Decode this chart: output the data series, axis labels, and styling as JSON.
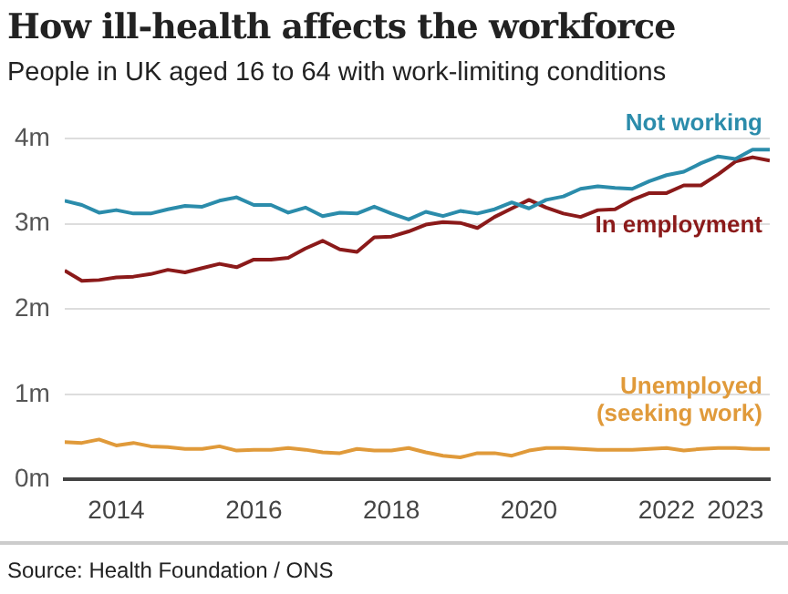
{
  "chart_data": {
    "type": "line",
    "title": "How ill-health affects the workforce",
    "subtitle": "People in UK aged 16 to 64 with work-limiting conditions",
    "x": [
      2013.25,
      2013.5,
      2013.75,
      2014,
      2014.25,
      2014.5,
      2014.75,
      2015,
      2015.25,
      2015.5,
      2015.75,
      2016,
      2016.25,
      2016.5,
      2016.75,
      2017,
      2017.25,
      2017.5,
      2017.75,
      2018,
      2018.25,
      2018.5,
      2018.75,
      2019,
      2019.25,
      2019.5,
      2019.75,
      2020,
      2020.25,
      2020.5,
      2020.75,
      2021,
      2021.25,
      2021.5,
      2021.75,
      2022,
      2022.25,
      2022.5,
      2022.75,
      2023,
      2023.25,
      2023.5
    ],
    "series": [
      {
        "name": "Not working",
        "color": "#2b8cab",
        "values": [
          3.27,
          3.22,
          3.13,
          3.16,
          3.12,
          3.12,
          3.17,
          3.21,
          3.2,
          3.27,
          3.31,
          3.22,
          3.22,
          3.13,
          3.19,
          3.09,
          3.13,
          3.12,
          3.2,
          3.12,
          3.05,
          3.14,
          3.09,
          3.15,
          3.12,
          3.17,
          3.25,
          3.18,
          3.28,
          3.32,
          3.41,
          3.44,
          3.42,
          3.41,
          3.5,
          3.57,
          3.61,
          3.71,
          3.79,
          3.76,
          3.87,
          3.87
        ]
      },
      {
        "name": "In employment",
        "color": "#8b1a1a",
        "values": [
          2.45,
          2.33,
          2.34,
          2.37,
          2.38,
          2.41,
          2.46,
          2.43,
          2.48,
          2.53,
          2.49,
          2.58,
          2.58,
          2.6,
          2.71,
          2.8,
          2.7,
          2.67,
          2.84,
          2.85,
          2.91,
          2.99,
          3.02,
          3.01,
          2.95,
          3.08,
          3.18,
          3.28,
          3.19,
          3.12,
          3.08,
          3.16,
          3.17,
          3.28,
          3.36,
          3.36,
          3.45,
          3.45,
          3.58,
          3.73,
          3.78,
          3.74
        ]
      },
      {
        "name": "Unemployed\n(seeking work)",
        "color": "#e09a3a",
        "values": [
          0.44,
          0.43,
          0.47,
          0.4,
          0.43,
          0.39,
          0.38,
          0.36,
          0.36,
          0.39,
          0.34,
          0.35,
          0.35,
          0.37,
          0.35,
          0.32,
          0.31,
          0.36,
          0.34,
          0.34,
          0.37,
          0.32,
          0.28,
          0.26,
          0.31,
          0.31,
          0.28,
          0.34,
          0.37,
          0.37,
          0.36,
          0.35,
          0.35,
          0.35,
          0.36,
          0.37,
          0.34,
          0.36,
          0.37,
          0.37,
          0.36,
          0.36
        ]
      }
    ],
    "xlim": [
      2013.25,
      2023.5
    ],
    "xticks": [
      2014,
      2016,
      2018,
      2020,
      2022,
      2023
    ],
    "ylim": [
      0,
      4
    ],
    "yticks": [
      {
        "value": 0,
        "label": "0m"
      },
      {
        "value": 1,
        "label": "1m"
      },
      {
        "value": 2,
        "label": "2m"
      },
      {
        "value": 3,
        "label": "3m"
      },
      {
        "value": 4,
        "label": "4m"
      }
    ],
    "grid": "y",
    "legend": false,
    "marker": "none",
    "line_style": "solid",
    "annotations": [
      "Source: Health Foundation / ONS"
    ]
  }
}
